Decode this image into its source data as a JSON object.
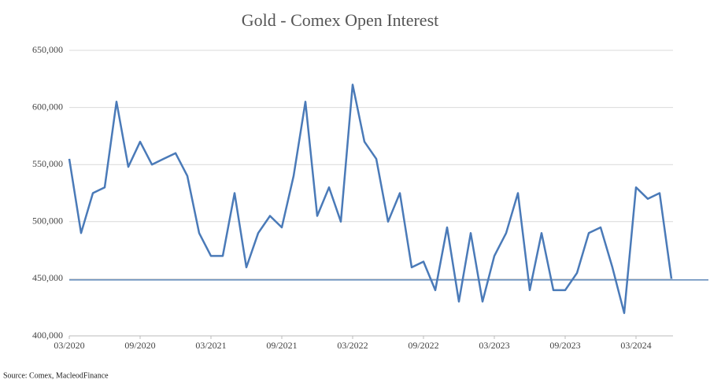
{
  "chart_data": {
    "type": "line",
    "title": "Gold - Comex Open Interest",
    "source": "Source: Comex,  MacleodFinance",
    "x": [
      "2020-03",
      "2020-04",
      "2020-05",
      "2020-06",
      "2020-07",
      "2020-08",
      "2020-09",
      "2020-10",
      "2020-11",
      "2020-12",
      "2021-01",
      "2021-02",
      "2021-03",
      "2021-04",
      "2021-05",
      "2021-06",
      "2021-07",
      "2021-08",
      "2021-09",
      "2021-10",
      "2021-11",
      "2021-12",
      "2022-01",
      "2022-02",
      "2022-03",
      "2022-04",
      "2022-05",
      "2022-06",
      "2022-07",
      "2022-08",
      "2022-09",
      "2022-10",
      "2022-11",
      "2022-12",
      "2023-01",
      "2023-02",
      "2023-03",
      "2023-04",
      "2023-05",
      "2023-06",
      "2023-07",
      "2023-08",
      "2023-09",
      "2023-10",
      "2023-11",
      "2023-12",
      "2024-01",
      "2024-02",
      "2024-03",
      "2024-04",
      "2024-05",
      "2024-06"
    ],
    "series": [
      {
        "name": "Open Interest",
        "color": "#4a7ab8",
        "values": [
          555000,
          490000,
          525000,
          530000,
          605000,
          548000,
          570000,
          550000,
          555000,
          560000,
          540000,
          490000,
          470000,
          470000,
          525000,
          460000,
          490000,
          505000,
          495000,
          540000,
          605000,
          505000,
          530000,
          500000,
          620000,
          570000,
          555000,
          500000,
          525000,
          460000,
          465000,
          440000,
          495000,
          430000,
          490000,
          430000,
          470000,
          490000,
          525000,
          440000,
          490000,
          440000,
          440000,
          455000,
          490000,
          495000,
          460000,
          420000,
          530000,
          520000,
          525000,
          450000
        ]
      }
    ],
    "reference_line": 449000,
    "xlim": [
      "2020-03",
      "2024-06"
    ],
    "xticks": [
      {
        "value": "2020-03",
        "label": "03/2020"
      },
      {
        "value": "2020-09",
        "label": "09/2020"
      },
      {
        "value": "2021-03",
        "label": "03/2021"
      },
      {
        "value": "2021-09",
        "label": "09/2021"
      },
      {
        "value": "2022-03",
        "label": "03/2022"
      },
      {
        "value": "2022-09",
        "label": "09/2022"
      },
      {
        "value": "2023-03",
        "label": "03/2023"
      },
      {
        "value": "2023-09",
        "label": "09/2023"
      },
      {
        "value": "2024-03",
        "label": "03/2024"
      }
    ],
    "ylim": [
      400000,
      650000
    ],
    "yticks": [
      {
        "value": 400000,
        "label": "400,000"
      },
      {
        "value": 450000,
        "label": "450,000"
      },
      {
        "value": 500000,
        "label": "500,000"
      },
      {
        "value": 550000,
        "label": "550,000"
      },
      {
        "value": 600000,
        "label": "600,000"
      },
      {
        "value": 650000,
        "label": "650,000"
      }
    ],
    "grid": true
  }
}
